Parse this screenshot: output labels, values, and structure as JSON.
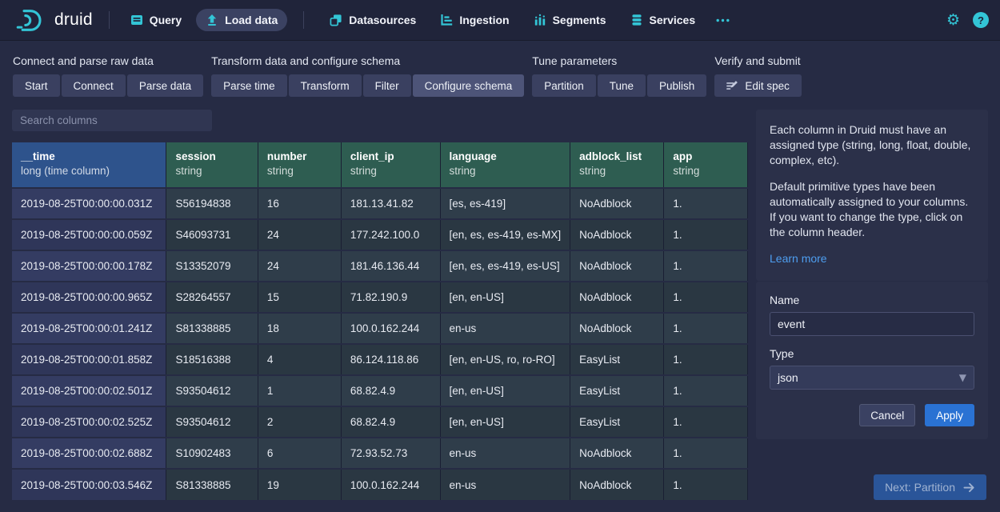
{
  "colors": {
    "accent": "#33c5d6",
    "nav_bg": "#20243a",
    "page_bg": "#262b44",
    "time_header": "#2e538c",
    "dim_header": "#2e5d51",
    "link": "#4e9ef0",
    "primary": "#2a72d3"
  },
  "nav": {
    "brand": "druid",
    "items": [
      {
        "label": "Query",
        "icon": "query-icon",
        "active": false
      },
      {
        "label": "Load data",
        "icon": "load-data-icon",
        "active": true
      },
      {
        "label": "Datasources",
        "icon": "datasources-icon",
        "active": false
      },
      {
        "label": "Ingestion",
        "icon": "ingestion-icon",
        "active": false
      },
      {
        "label": "Segments",
        "icon": "segments-icon",
        "active": false
      },
      {
        "label": "Services",
        "icon": "services-icon",
        "active": false
      }
    ]
  },
  "steps": {
    "groups": [
      {
        "label": "Connect and parse raw data",
        "buttons": [
          {
            "label": "Start"
          },
          {
            "label": "Connect"
          },
          {
            "label": "Parse data"
          }
        ]
      },
      {
        "label": "Transform data and configure schema",
        "buttons": [
          {
            "label": "Parse time"
          },
          {
            "label": "Transform"
          },
          {
            "label": "Filter"
          },
          {
            "label": "Configure schema",
            "active": true
          }
        ]
      },
      {
        "label": "Tune parameters",
        "buttons": [
          {
            "label": "Partition"
          },
          {
            "label": "Tune"
          },
          {
            "label": "Publish"
          }
        ]
      },
      {
        "label": "Verify and submit",
        "buttons": [
          {
            "label": "Edit spec",
            "icon": "edit-spec-icon"
          }
        ]
      }
    ]
  },
  "search": {
    "placeholder": "Search columns"
  },
  "table": {
    "columns": [
      {
        "name": "__time",
        "type": "long (time column)",
        "kind": "time"
      },
      {
        "name": "session",
        "type": "string",
        "kind": "dim"
      },
      {
        "name": "number",
        "type": "string",
        "kind": "dim"
      },
      {
        "name": "client_ip",
        "type": "string",
        "kind": "dim"
      },
      {
        "name": "language",
        "type": "string",
        "kind": "dim"
      },
      {
        "name": "adblock_list",
        "type": "string",
        "kind": "dim"
      },
      {
        "name": "app",
        "type": "string",
        "kind": "dim"
      }
    ],
    "rows": [
      [
        "2019-08-25T00:00:00.031Z",
        "S56194838",
        "16",
        "181.13.41.82",
        "[es, es-419]",
        "NoAdblock",
        "1."
      ],
      [
        "2019-08-25T00:00:00.059Z",
        "S46093731",
        "24",
        "177.242.100.0",
        "[en, es, es-419, es-MX]",
        "NoAdblock",
        "1."
      ],
      [
        "2019-08-25T00:00:00.178Z",
        "S13352079",
        "24",
        "181.46.136.44",
        "[en, es, es-419, es-US]",
        "NoAdblock",
        "1."
      ],
      [
        "2019-08-25T00:00:00.965Z",
        "S28264557",
        "15",
        "71.82.190.9",
        "[en, en-US]",
        "NoAdblock",
        "1."
      ],
      [
        "2019-08-25T00:00:01.241Z",
        "S81338885",
        "18",
        "100.0.162.244",
        "en-us",
        "NoAdblock",
        "1."
      ],
      [
        "2019-08-25T00:00:01.858Z",
        "S18516388",
        "4",
        "86.124.118.86",
        "[en, en-US, ro, ro-RO]",
        "EasyList",
        "1."
      ],
      [
        "2019-08-25T00:00:02.501Z",
        "S93504612",
        "1",
        "68.82.4.9",
        "[en, en-US]",
        "EasyList",
        "1."
      ],
      [
        "2019-08-25T00:00:02.525Z",
        "S93504612",
        "2",
        "68.82.4.9",
        "[en, en-US]",
        "EasyList",
        "1."
      ],
      [
        "2019-08-25T00:00:02.688Z",
        "S10902483",
        "6",
        "72.93.52.73",
        "en-us",
        "NoAdblock",
        "1."
      ],
      [
        "2019-08-25T00:00:03.546Z",
        "S81338885",
        "19",
        "100.0.162.244",
        "en-us",
        "NoAdblock",
        "1."
      ]
    ]
  },
  "callout": {
    "p1": "Each column in Druid must have an assigned type (string, long, float, double, complex, etc).",
    "p2": "Default primitive types have been automatically assigned to your columns. If you want to change the type, click on the column header.",
    "link": "Learn more"
  },
  "editor": {
    "name_label": "Name",
    "name_value": "event",
    "type_label": "Type",
    "type_value": "json",
    "cancel_label": "Cancel",
    "apply_label": "Apply"
  },
  "footer": {
    "next_label": "Next: Partition"
  }
}
